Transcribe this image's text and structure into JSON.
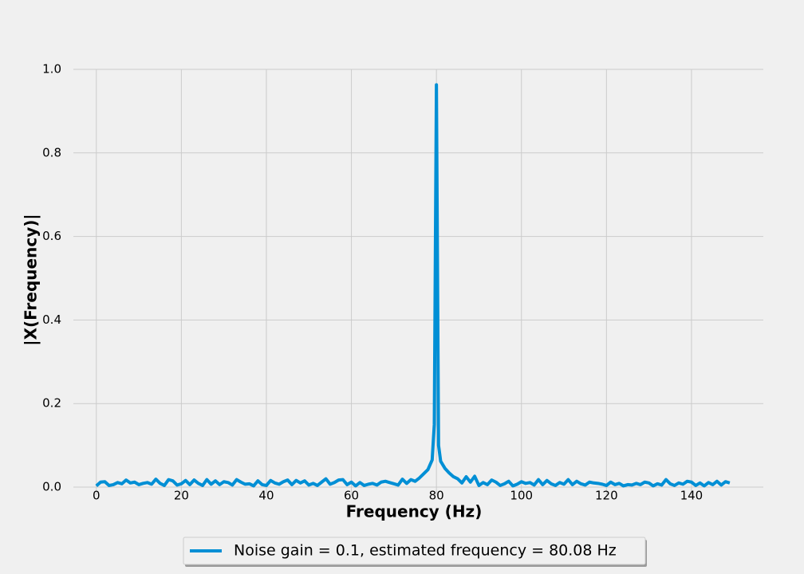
{
  "chart_data": {
    "type": "line",
    "x_label": "Frequency (Hz)",
    "y_label": "|X(Frequency)|",
    "x": [
      0,
      1,
      2,
      3,
      4,
      5,
      6,
      7,
      8,
      9,
      10,
      11,
      12,
      13,
      14,
      15,
      16,
      17,
      18,
      19,
      20,
      21,
      22,
      23,
      24,
      25,
      26,
      27,
      28,
      29,
      30,
      31,
      32,
      33,
      34,
      35,
      36,
      37,
      38,
      39,
      40,
      41,
      42,
      43,
      44,
      45,
      46,
      47,
      48,
      49,
      50,
      51,
      52,
      53,
      54,
      55,
      56,
      57,
      58,
      59,
      60,
      61,
      62,
      63,
      64,
      65,
      66,
      67,
      68,
      69,
      70,
      71,
      72,
      73,
      74,
      75,
      76,
      77,
      78,
      79,
      79.5,
      80,
      80.5,
      81,
      82,
      83,
      84,
      85,
      86,
      87,
      88,
      89,
      90,
      91,
      92,
      93,
      94,
      95,
      96,
      97,
      98,
      99,
      100,
      101,
      102,
      103,
      104,
      105,
      106,
      107,
      108,
      109,
      110,
      111,
      112,
      113,
      114,
      115,
      116,
      117,
      118,
      119,
      120,
      121,
      122,
      123,
      124,
      125,
      126,
      127,
      128,
      129,
      130,
      131,
      132,
      133,
      134,
      135,
      136,
      137,
      138,
      139,
      140,
      141,
      142,
      143,
      144,
      145,
      146,
      147,
      148,
      149
    ],
    "series": [
      {
        "name": "Noise gain = 0.1, estimated frequency = 80.08 Hz",
        "color": "#008fd5",
        "values": [
          0.003,
          0.012,
          0.013,
          0.004,
          0.006,
          0.011,
          0.008,
          0.017,
          0.01,
          0.012,
          0.006,
          0.009,
          0.011,
          0.007,
          0.019,
          0.009,
          0.004,
          0.018,
          0.015,
          0.005,
          0.008,
          0.016,
          0.006,
          0.017,
          0.009,
          0.004,
          0.018,
          0.007,
          0.015,
          0.006,
          0.013,
          0.011,
          0.005,
          0.018,
          0.012,
          0.007,
          0.008,
          0.003,
          0.015,
          0.006,
          0.004,
          0.016,
          0.01,
          0.007,
          0.013,
          0.017,
          0.006,
          0.016,
          0.01,
          0.015,
          0.005,
          0.009,
          0.004,
          0.012,
          0.02,
          0.007,
          0.011,
          0.017,
          0.018,
          0.006,
          0.012,
          0.003,
          0.011,
          0.004,
          0.007,
          0.009,
          0.005,
          0.012,
          0.014,
          0.011,
          0.008,
          0.005,
          0.019,
          0.009,
          0.018,
          0.014,
          0.022,
          0.032,
          0.042,
          0.065,
          0.15,
          0.963,
          0.1,
          0.062,
          0.045,
          0.034,
          0.025,
          0.02,
          0.01,
          0.025,
          0.012,
          0.026,
          0.004,
          0.011,
          0.006,
          0.017,
          0.012,
          0.004,
          0.008,
          0.014,
          0.003,
          0.007,
          0.013,
          0.009,
          0.011,
          0.005,
          0.018,
          0.006,
          0.016,
          0.008,
          0.004,
          0.011,
          0.007,
          0.018,
          0.006,
          0.014,
          0.008,
          0.005,
          0.012,
          0.01,
          0.009,
          0.007,
          0.004,
          0.012,
          0.006,
          0.009,
          0.003,
          0.006,
          0.005,
          0.009,
          0.006,
          0.012,
          0.01,
          0.003,
          0.008,
          0.005,
          0.018,
          0.008,
          0.004,
          0.01,
          0.007,
          0.014,
          0.012,
          0.004,
          0.01,
          0.003,
          0.011,
          0.006,
          0.014,
          0.005,
          0.013,
          0.01
        ]
      }
    ],
    "xlim": [
      -5.4,
      156.9
    ],
    "ylim": [
      -0.019,
      1.0
    ],
    "xticks": [
      0,
      20,
      40,
      60,
      80,
      100,
      120,
      140
    ],
    "yticks": [
      {
        "value": 0,
        "label": "0.0"
      },
      0.2,
      0.4,
      0.6,
      0.8,
      {
        "value": 1,
        "label": "1.0"
      }
    ],
    "grid": true,
    "legend": "bottom"
  }
}
